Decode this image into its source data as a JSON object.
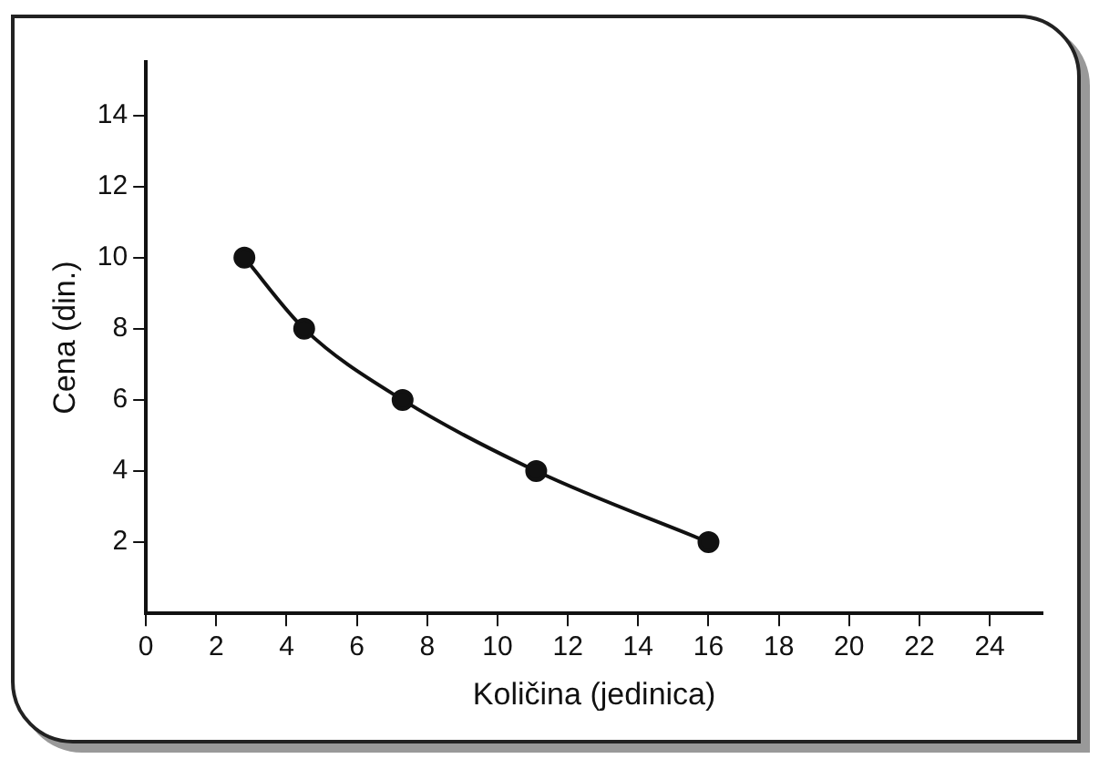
{
  "chart_data": {
    "type": "line",
    "xlabel": "Količina (jedinica)",
    "ylabel": "Cena (din.)",
    "x": [
      2.8,
      4.5,
      7.3,
      11.1,
      16
    ],
    "series": [
      {
        "color": "#111111",
        "values": [
          10,
          8,
          6,
          4,
          2
        ]
      }
    ],
    "xlim": [
      0,
      25.5
    ],
    "xticks": [
      0,
      2,
      4,
      6,
      8,
      10,
      12,
      14,
      16,
      18,
      20,
      22,
      24
    ],
    "ylim": [
      0,
      15.5
    ],
    "yticks": [
      2,
      4,
      6,
      8,
      10,
      12,
      14
    ],
    "marker": "circle",
    "line_style": "solid",
    "grid": false,
    "legend": false
  }
}
